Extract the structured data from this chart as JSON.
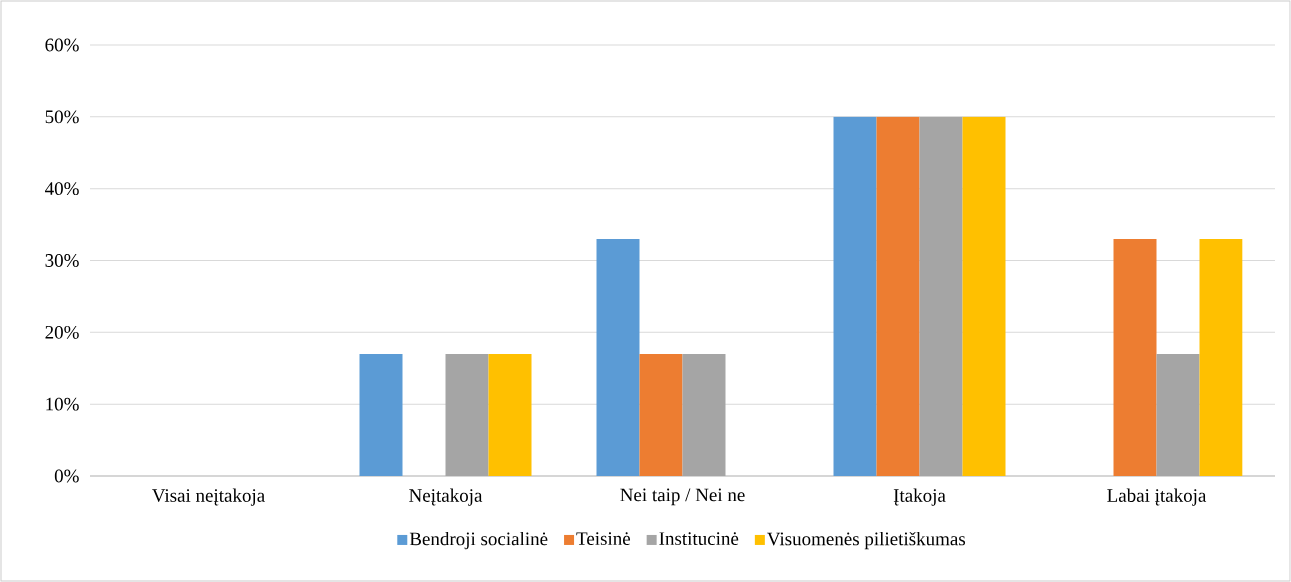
{
  "chart_data": {
    "type": "bar",
    "categories": [
      "Visai neįtakoja",
      "Neįtakoja",
      "Nei taip / Nei ne",
      "Įtakoja",
      "Labai įtakoja"
    ],
    "series": [
      {
        "name": "Bendroji socialinė",
        "color": "#5b9bd5",
        "values": [
          0,
          17,
          33,
          50,
          0
        ]
      },
      {
        "name": "Teisinė",
        "color": "#ed7d31",
        "values": [
          0,
          0,
          17,
          50,
          33
        ]
      },
      {
        "name": "Institucinė",
        "color": "#a5a5a5",
        "values": [
          0,
          17,
          17,
          50,
          17
        ]
      },
      {
        "name": "Visuomenės pilietiškumas",
        "color": "#ffc000",
        "values": [
          0,
          17,
          0,
          50,
          33
        ]
      }
    ],
    "ylim": [
      0,
      60
    ],
    "yticks": [
      {
        "value": 0,
        "label": "0%"
      },
      {
        "value": 10,
        "label": "10%"
      },
      {
        "value": 20,
        "label": "20%"
      },
      {
        "value": 30,
        "label": "30%"
      },
      {
        "value": 40,
        "label": "40%"
      },
      {
        "value": 50,
        "label": "50%"
      },
      {
        "value": 60,
        "label": "60%"
      }
    ],
    "grid": "y",
    "legend": "bottom"
  }
}
